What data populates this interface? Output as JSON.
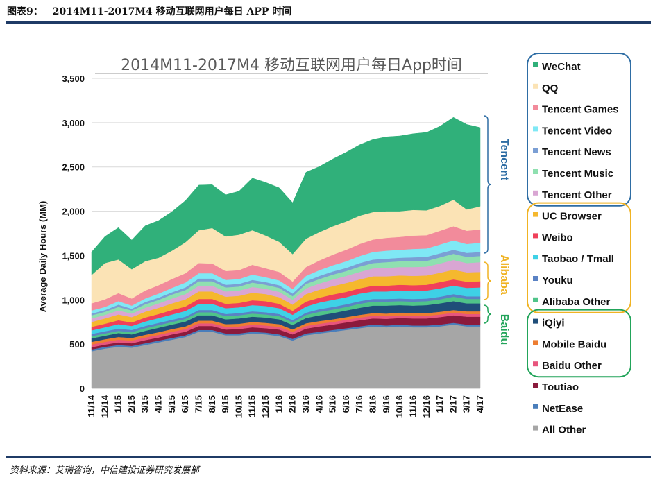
{
  "header": {
    "figure_number": "图表9：",
    "title": "2014M11-2017M4 移动互联网用户每日 APP 时间"
  },
  "footer": {
    "source": "资料来源：艾瑞咨询，中信建投证券研究发展部"
  },
  "colors": {
    "rule": "#1f3b66",
    "tencent_box": "#2e6da4",
    "alibaba_box": "#f0b323",
    "baidu_box": "#22a45a"
  },
  "chart_data": {
    "type": "area",
    "stacked": true,
    "title": "2014M11-2017M4 移动互联网用户每日App时间",
    "ylabel": "Average Daily Hours (MM)",
    "xlabel": "",
    "ylim": [
      0,
      3500
    ],
    "yticks": [
      "0",
      "500",
      "1,000",
      "1,500",
      "2,000",
      "2,500",
      "3,000",
      "3,500"
    ],
    "ytick_values": [
      0,
      500,
      1000,
      1500,
      2000,
      2500,
      3000,
      3500
    ],
    "x_labels": [
      "11/14",
      "12/14",
      "1/15",
      "2/15",
      "3/15",
      "4/15",
      "5/15",
      "6/15",
      "7/15",
      "8/15",
      "9/15",
      "10/15",
      "11/15",
      "12/15",
      "1/16",
      "2/16",
      "3/16",
      "4/16",
      "5/16",
      "6/16",
      "7/16",
      "8/16",
      "9/16",
      "10/16",
      "11/16",
      "12/16",
      "1/17",
      "2/17",
      "3/17",
      "4/17"
    ],
    "grid": "horizontal",
    "legend_position": "right",
    "series": [
      {
        "name": "All Other",
        "color": "#a6a6a6",
        "values": [
          420,
          450,
          470,
          460,
          490,
          520,
          550,
          580,
          640,
          640,
          600,
          600,
          620,
          610,
          590,
          540,
          600,
          620,
          640,
          660,
          680,
          700,
          690,
          700,
          690,
          690,
          700,
          720,
          700,
          700
        ]
      },
      {
        "name": "NetEase",
        "color": "#4a7ebb",
        "values": [
          20,
          20,
          20,
          20,
          20,
          20,
          20,
          20,
          20,
          20,
          20,
          20,
          20,
          20,
          20,
          20,
          20,
          20,
          20,
          20,
          20,
          20,
          20,
          20,
          20,
          20,
          20,
          20,
          20,
          20
        ]
      },
      {
        "name": "Toutiao",
        "color": "#8b1a3c",
        "values": [
          25,
          25,
          30,
          30,
          35,
          35,
          40,
          40,
          45,
          45,
          45,
          50,
          50,
          50,
          55,
          50,
          55,
          60,
          60,
          65,
          70,
          70,
          75,
          75,
          80,
          80,
          85,
          85,
          90,
          90
        ]
      },
      {
        "name": "Baidu Other",
        "color": "#e8557d",
        "values": [
          30,
          30,
          30,
          30,
          30,
          30,
          30,
          30,
          30,
          30,
          30,
          30,
          30,
          30,
          30,
          28,
          30,
          30,
          30,
          30,
          30,
          30,
          30,
          30,
          30,
          30,
          30,
          30,
          30,
          30
        ]
      },
      {
        "name": "Mobile Baidu",
        "color": "#ed7d31",
        "values": [
          30,
          30,
          30,
          30,
          30,
          30,
          30,
          30,
          30,
          30,
          30,
          30,
          30,
          30,
          30,
          28,
          30,
          30,
          30,
          30,
          30,
          30,
          30,
          30,
          30,
          30,
          30,
          30,
          30,
          30
        ]
      },
      {
        "name": "iQiyi",
        "color": "#1f4e79",
        "values": [
          40,
          40,
          45,
          40,
          45,
          50,
          50,
          55,
          60,
          60,
          55,
          60,
          60,
          60,
          55,
          50,
          60,
          65,
          70,
          75,
          80,
          85,
          90,
          85,
          85,
          90,
          95,
          100,
          90,
          90
        ]
      },
      {
        "name": "Alibaba Other",
        "color": "#4fc489",
        "values": [
          25,
          25,
          25,
          25,
          30,
          30,
          30,
          30,
          35,
          35,
          35,
          35,
          35,
          35,
          35,
          30,
          35,
          40,
          40,
          40,
          45,
          45,
          45,
          45,
          45,
          45,
          45,
          50,
          50,
          50
        ]
      },
      {
        "name": "Youku",
        "color": "#5a82c4",
        "values": [
          25,
          25,
          25,
          25,
          25,
          25,
          25,
          25,
          25,
          25,
          25,
          25,
          25,
          25,
          25,
          25,
          25,
          30,
          30,
          30,
          30,
          30,
          30,
          30,
          30,
          30,
          30,
          30,
          30,
          30
        ]
      },
      {
        "name": "Taobao / Tmall",
        "color": "#3ed1e6",
        "values": [
          40,
          45,
          50,
          45,
          50,
          55,
          60,
          65,
          70,
          70,
          65,
          65,
          70,
          70,
          65,
          60,
          70,
          75,
          80,
          80,
          85,
          85,
          85,
          90,
          90,
          90,
          95,
          95,
          95,
          100
        ]
      },
      {
        "name": "Weibo",
        "color": "#f0405a",
        "values": [
          40,
          40,
          45,
          40,
          45,
          45,
          50,
          50,
          55,
          55,
          50,
          50,
          55,
          55,
          50,
          45,
          55,
          55,
          60,
          60,
          60,
          65,
          65,
          65,
          65,
          65,
          70,
          70,
          70,
          70
        ]
      },
      {
        "name": "UC Browser",
        "color": "#f5b82e",
        "values": [
          55,
          60,
          65,
          60,
          65,
          70,
          75,
          80,
          85,
          85,
          80,
          80,
          85,
          80,
          75,
          70,
          85,
          90,
          95,
          100,
          100,
          105,
          105,
          105,
          105,
          105,
          105,
          110,
          105,
          105
        ]
      },
      {
        "name": "Tencent Other",
        "color": "#d9a6d3",
        "values": [
          40,
          40,
          45,
          40,
          45,
          50,
          55,
          60,
          65,
          65,
          60,
          60,
          65,
          60,
          60,
          55,
          65,
          70,
          75,
          80,
          85,
          90,
          95,
          95,
          100,
          100,
          105,
          110,
          105,
          110
        ]
      },
      {
        "name": "Tencent Music",
        "color": "#8fe0b0",
        "values": [
          35,
          35,
          40,
          35,
          40,
          40,
          45,
          45,
          50,
          50,
          45,
          45,
          50,
          45,
          45,
          40,
          50,
          50,
          55,
          55,
          60,
          60,
          65,
          65,
          65,
          65,
          70,
          70,
          70,
          70
        ]
      },
      {
        "name": "Tencent News",
        "color": "#7b9fd4",
        "values": [
          20,
          20,
          25,
          20,
          25,
          25,
          25,
          30,
          30,
          30,
          30,
          30,
          30,
          30,
          30,
          30,
          30,
          35,
          35,
          35,
          40,
          40,
          40,
          40,
          45,
          45,
          45,
          45,
          45,
          45
        ]
      },
      {
        "name": "Tencent Video",
        "color": "#7fe8f5",
        "values": [
          35,
          35,
          40,
          35,
          40,
          45,
          50,
          55,
          60,
          60,
          55,
          55,
          60,
          55,
          55,
          50,
          60,
          65,
          70,
          75,
          80,
          85,
          90,
          90,
          95,
          95,
          100,
          105,
          100,
          105
        ]
      },
      {
        "name": "Tencent Games",
        "color": "#f28b9b",
        "values": [
          80,
          85,
          90,
          80,
          90,
          95,
          100,
          105,
          115,
          110,
          100,
          100,
          110,
          100,
          95,
          85,
          100,
          110,
          120,
          130,
          135,
          140,
          145,
          145,
          150,
          150,
          155,
          160,
          150,
          150
        ]
      },
      {
        "name": "QQ",
        "color": "#fbe3b5",
        "values": [
          320,
          410,
          380,
          330,
          330,
          310,
          320,
          350,
          370,
          400,
          390,
          400,
          390,
          370,
          340,
          310,
          320,
          320,
          320,
          320,
          320,
          310,
          300,
          290,
          290,
          280,
          280,
          300,
          240,
          260
        ]
      },
      {
        "name": "WeChat",
        "color": "#30b07a",
        "values": [
          260,
          300,
          360,
          330,
          400,
          420,
          440,
          470,
          510,
          490,
          470,
          490,
          590,
          600,
          610,
          580,
          750,
          740,
          760,
          780,
          800,
          820,
          840,
          850,
          860,
          880,
          900,
          930,
          960,
          890
        ]
      }
    ]
  },
  "legend": {
    "groups": [
      {
        "label": "Tencent",
        "color": "#2e6da4",
        "items": [
          "WeChat",
          "QQ",
          "Tencent Games",
          "Tencent Video",
          "Tencent News",
          "Tencent Music",
          "Tencent Other"
        ]
      },
      {
        "label": "Alibaba",
        "color": "#f0b323",
        "items": [
          "UC Browser",
          "Weibo",
          "Taobao / Tmall",
          "Youku",
          "Alibaba Other"
        ]
      },
      {
        "label": "Baidu",
        "color": "#22a45a",
        "items": [
          "iQiyi",
          "Mobile Baidu",
          "Baidu Other"
        ]
      }
    ],
    "ungrouped": [
      "Toutiao",
      "NetEase",
      "All Other"
    ]
  }
}
